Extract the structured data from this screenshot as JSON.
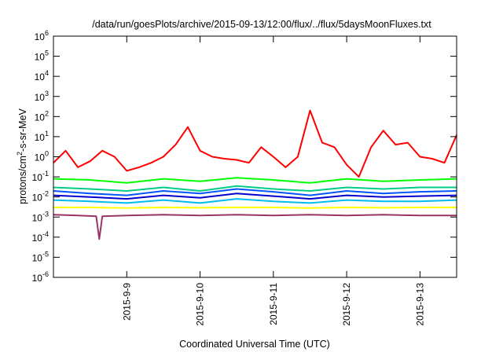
{
  "chart_data": {
    "type": "line",
    "title": "/data/run/goesPlots/archive/2015-09-13/12:00/flux/../flux/5daysMoonFluxes.txt",
    "xlabel": "Coordinated Universal Time (UTC)",
    "ylabel": "protons/cm²-s-sr-MeV",
    "y_scale": "log",
    "ylim": [
      1e-06,
      1000000.0
    ],
    "xlim": [
      "2015-09-08 00:00",
      "2015-09-13 12:00"
    ],
    "x_ticks": [
      "2015-9-9",
      "2015-9-10",
      "2015-9-11",
      "2015-9-12",
      "2015-9-13"
    ],
    "y_tick_exponents": [
      -6,
      -5,
      -4,
      -3,
      -2,
      -1,
      0,
      1,
      2,
      3,
      4,
      5,
      6
    ],
    "y_tick_base": "10",
    "grid": false,
    "legend": "none",
    "series": [
      {
        "color": "#ff0000",
        "x": [
          "2015-09-08 00:00",
          "2015-09-08 04:00",
          "2015-09-08 08:00",
          "2015-09-08 12:00",
          "2015-09-08 16:00",
          "2015-09-08 20:00",
          "2015-09-09 00:00",
          "2015-09-09 04:00",
          "2015-09-09 08:00",
          "2015-09-09 12:00",
          "2015-09-09 16:00",
          "2015-09-09 20:00",
          "2015-09-10 00:00",
          "2015-09-10 04:00",
          "2015-09-10 08:00",
          "2015-09-10 12:00",
          "2015-09-10 16:00",
          "2015-09-10 20:00",
          "2015-09-11 00:00",
          "2015-09-11 04:00",
          "2015-09-11 08:00",
          "2015-09-11 12:00",
          "2015-09-11 16:00",
          "2015-09-11 20:00",
          "2015-09-12 00:00",
          "2015-09-12 04:00",
          "2015-09-12 08:00",
          "2015-09-12 12:00",
          "2015-09-12 16:00",
          "2015-09-12 20:00",
          "2015-09-13 00:00",
          "2015-09-13 04:00",
          "2015-09-13 08:00",
          "2015-09-13 12:00"
        ],
        "y": [
          0.5,
          2,
          0.3,
          0.6,
          2,
          1,
          0.2,
          0.3,
          0.5,
          1,
          4,
          30,
          2,
          1,
          0.8,
          0.7,
          0.5,
          3,
          1,
          0.3,
          1,
          200,
          5,
          3,
          0.4,
          0.1,
          3,
          20,
          4,
          5,
          1,
          0.8,
          0.5,
          12
        ]
      },
      {
        "color": "#00ff00",
        "x": [
          "2015-09-08 00:00",
          "2015-09-08 12:00",
          "2015-09-09 00:00",
          "2015-09-09 12:00",
          "2015-09-10 00:00",
          "2015-09-10 12:00",
          "2015-09-11 00:00",
          "2015-09-11 12:00",
          "2015-09-12 00:00",
          "2015-09-12 12:00",
          "2015-09-13 00:00",
          "2015-09-13 12:00"
        ],
        "y": [
          0.08,
          0.07,
          0.05,
          0.08,
          0.06,
          0.09,
          0.07,
          0.05,
          0.08,
          0.06,
          0.07,
          0.08
        ]
      },
      {
        "color": "#00cc88",
        "x": [
          "2015-09-08 00:00",
          "2015-09-08 12:00",
          "2015-09-09 00:00",
          "2015-09-09 12:00",
          "2015-09-10 00:00",
          "2015-09-10 12:00",
          "2015-09-11 00:00",
          "2015-09-11 12:00",
          "2015-09-12 00:00",
          "2015-09-12 12:00",
          "2015-09-13 00:00",
          "2015-09-13 12:00"
        ],
        "y": [
          0.03,
          0.025,
          0.02,
          0.03,
          0.02,
          0.035,
          0.025,
          0.02,
          0.03,
          0.025,
          0.03,
          0.03
        ]
      },
      {
        "color": "#0055ff",
        "x": [
          "2015-09-08 00:00",
          "2015-09-08 12:00",
          "2015-09-09 00:00",
          "2015-09-09 12:00",
          "2015-09-10 00:00",
          "2015-09-10 12:00",
          "2015-09-11 00:00",
          "2015-09-11 12:00",
          "2015-09-12 00:00",
          "2015-09-12 12:00",
          "2015-09-13 00:00",
          "2015-09-13 12:00"
        ],
        "y": [
          0.02,
          0.015,
          0.012,
          0.02,
          0.015,
          0.025,
          0.018,
          0.012,
          0.02,
          0.015,
          0.018,
          0.02
        ]
      },
      {
        "color": "#0000cc",
        "x": [
          "2015-09-08 00:00",
          "2015-09-08 12:00",
          "2015-09-09 00:00",
          "2015-09-09 12:00",
          "2015-09-10 00:00",
          "2015-09-10 12:00",
          "2015-09-11 00:00",
          "2015-09-11 12:00",
          "2015-09-12 00:00",
          "2015-09-12 12:00",
          "2015-09-13 00:00",
          "2015-09-13 12:00"
        ],
        "y": [
          0.012,
          0.01,
          0.008,
          0.012,
          0.009,
          0.015,
          0.011,
          0.008,
          0.012,
          0.01,
          0.011,
          0.012
        ]
      },
      {
        "color": "#00bbee",
        "x": [
          "2015-09-08 00:00",
          "2015-09-08 12:00",
          "2015-09-09 00:00",
          "2015-09-09 12:00",
          "2015-09-10 00:00",
          "2015-09-10 12:00",
          "2015-09-11 00:00",
          "2015-09-11 12:00",
          "2015-09-12 00:00",
          "2015-09-12 12:00",
          "2015-09-13 00:00",
          "2015-09-13 12:00"
        ],
        "y": [
          0.007,
          0.006,
          0.005,
          0.007,
          0.005,
          0.008,
          0.006,
          0.005,
          0.007,
          0.006,
          0.006,
          0.007
        ]
      },
      {
        "color": "#ffff00",
        "x": [
          "2015-09-08 00:00",
          "2015-09-08 12:00",
          "2015-09-09 00:00",
          "2015-09-09 12:00",
          "2015-09-10 00:00",
          "2015-09-10 12:00",
          "2015-09-11 00:00",
          "2015-09-11 12:00",
          "2015-09-12 00:00",
          "2015-09-12 12:00",
          "2015-09-13 00:00",
          "2015-09-13 12:00"
        ],
        "y": [
          0.003,
          0.003,
          0.0028,
          0.003,
          0.0029,
          0.003,
          0.003,
          0.0028,
          0.003,
          0.0029,
          0.003,
          0.003
        ]
      },
      {
        "color": "#993366",
        "x": [
          "2015-09-08 00:00",
          "2015-09-08 08:00",
          "2015-09-08 14:00",
          "2015-09-08 15:00",
          "2015-09-08 16:00",
          "2015-09-09 00:00",
          "2015-09-09 12:00",
          "2015-09-10 00:00",
          "2015-09-10 12:00",
          "2015-09-11 00:00",
          "2015-09-11 12:00",
          "2015-09-12 00:00",
          "2015-09-12 12:00",
          "2015-09-13 00:00",
          "2015-09-13 12:00"
        ],
        "y": [
          0.0013,
          0.0012,
          0.0011,
          8e-05,
          0.0011,
          0.0012,
          0.0013,
          0.0012,
          0.0013,
          0.0012,
          0.0013,
          0.0012,
          0.0013,
          0.0012,
          0.0012
        ]
      }
    ]
  }
}
